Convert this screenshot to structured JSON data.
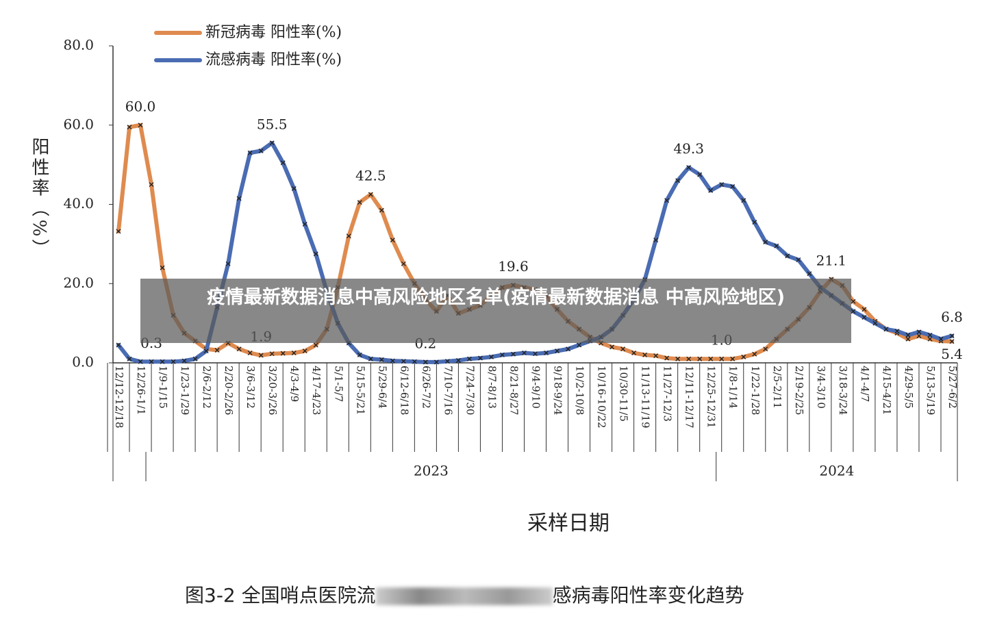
{
  "chart_data": {
    "type": "line",
    "ylabel": "阳性率（%）",
    "xlabel": "采样日期",
    "caption_left": "图3-2 全国哨点医院流",
    "caption_right": "感病毒阳性率变化趋势",
    "overlay": "疫情最新数据消息中高风险地区名单(疫情最新数据消息 中高风险地区)",
    "ylim": [
      0,
      80
    ],
    "yticks": [
      {
        "value": 0,
        "label": "0.0"
      },
      {
        "value": 20,
        "label": "20.0"
      },
      {
        "value": 40,
        "label": "40.0"
      },
      {
        "value": 60,
        "label": "60.0"
      },
      {
        "value": 80,
        "label": "80.0"
      }
    ],
    "categories": [
      "12/12-12/18",
      null,
      "12/26-1/1",
      null,
      "1/9-1/15",
      null,
      "1/23-1/29",
      null,
      "2/6-2/12",
      null,
      "2/20-2/26",
      null,
      "3/6-3/12",
      null,
      "3/20-3/26",
      null,
      "4/3-4/9",
      null,
      "4/17-4/23",
      null,
      "5/1-5/7",
      null,
      "5/15-5/21",
      null,
      "5/29-6/4",
      null,
      "6/12-6/18",
      null,
      "6/26-7/2",
      null,
      "7/10-7/16",
      null,
      "7/24-7/30",
      null,
      "8/7-8/13",
      null,
      "8/21-8/27",
      null,
      "9/4-9/10",
      null,
      "9/18-9/24",
      null,
      "10/2-10/8",
      null,
      "10/16-10/22",
      null,
      "10/30-11/5",
      null,
      "11/13-11/19",
      null,
      "11/27-12/3",
      null,
      "12/11-12/17",
      null,
      "12/25-12/31",
      null,
      "1/8-1/14",
      null,
      "1/22-1/28",
      null,
      "2/5-2/11",
      null,
      "2/19-2/25",
      null,
      "3/4-3/10",
      null,
      "3/18-3/24",
      null,
      "4/1-4/7",
      null,
      "4/15-4/21",
      null,
      "4/29-5/5",
      null,
      "5/13-5/19",
      null,
      "5/27-6/2"
    ],
    "year_groups": [
      {
        "label": "2023",
        "from": 3,
        "to": 54
      },
      {
        "label": "2024",
        "from": 55,
        "to": 76
      }
    ],
    "series": [
      {
        "name": "新冠病毒 阳性率(%)",
        "color": "#df8b4f",
        "values": [
          33.2,
          59.5,
          60.0,
          45,
          24,
          12,
          7.5,
          5.5,
          3.5,
          3.2,
          5,
          3.5,
          2.5,
          1.9,
          2.3,
          2.4,
          2.5,
          3,
          4.5,
          8.5,
          19,
          32,
          40.5,
          42.5,
          38.5,
          31,
          25,
          20,
          16,
          13,
          17,
          12.5,
          13.5,
          14.5,
          17,
          19,
          19.6,
          19,
          18.5,
          17,
          13.5,
          10.5,
          8.5,
          6.5,
          5,
          4,
          3.5,
          2.5,
          2,
          1.8,
          1.2,
          1.0,
          1.0,
          1.0,
          1.0,
          1.0,
          1.0,
          1.5,
          2.2,
          3.5,
          6,
          8.5,
          11,
          14,
          18,
          21.1,
          19.5,
          15.5,
          13.5,
          10.5,
          8.5,
          7.5,
          6,
          6.8,
          6,
          5.5,
          5.4
        ],
        "value_labels": [
          null,
          null,
          "60.0",
          null,
          null,
          null,
          null,
          null,
          null,
          null,
          null,
          null,
          null,
          "1.9",
          null,
          null,
          null,
          null,
          null,
          null,
          null,
          null,
          null,
          "42.5",
          null,
          null,
          null,
          null,
          null,
          null,
          null,
          null,
          null,
          null,
          null,
          null,
          "19.6",
          null,
          null,
          null,
          null,
          null,
          null,
          null,
          null,
          null,
          null,
          null,
          null,
          null,
          null,
          null,
          null,
          null,
          null,
          "1.0",
          null,
          null,
          null,
          null,
          null,
          null,
          null,
          null,
          null,
          "21.1",
          null,
          null,
          null,
          null,
          null,
          null,
          null,
          null,
          null,
          null,
          "5.4"
        ]
      },
      {
        "name": "流感病毒 阳性率(%)",
        "color": "#4a6cb3",
        "values": [
          4.5,
          1.0,
          0.3,
          0.3,
          0.3,
          0.3,
          0.5,
          1,
          3,
          14,
          25,
          41.5,
          53,
          53.5,
          55.5,
          50.5,
          44,
          35,
          27.5,
          18,
          10,
          5,
          2,
          1,
          0.8,
          0.5,
          0.4,
          0.3,
          0.2,
          0.2,
          0.4,
          0.6,
          1,
          1.2,
          1.5,
          2,
          2.2,
          2.5,
          2.3,
          2.5,
          3,
          3.5,
          4.5,
          5.5,
          6.5,
          8.5,
          12,
          16,
          21,
          31,
          41,
          46,
          49.3,
          47.5,
          43.5,
          45,
          44.5,
          41,
          35.5,
          30.5,
          29.5,
          27,
          26,
          22.5,
          19,
          17,
          15,
          13,
          11.5,
          10,
          8.5,
          8,
          7,
          7.8,
          7,
          6,
          6.8
        ],
        "value_labels": [
          null,
          null,
          null,
          "0.3",
          null,
          null,
          null,
          null,
          null,
          null,
          null,
          null,
          null,
          null,
          "55.5",
          null,
          null,
          null,
          null,
          null,
          null,
          null,
          null,
          null,
          null,
          null,
          null,
          null,
          "0.2",
          null,
          null,
          null,
          null,
          null,
          null,
          null,
          null,
          null,
          null,
          null,
          null,
          null,
          null,
          null,
          null,
          null,
          null,
          null,
          null,
          null,
          null,
          null,
          "49.3",
          null,
          null,
          null,
          null,
          null,
          null,
          null,
          null,
          null,
          null,
          null,
          null,
          null,
          null,
          null,
          null,
          null,
          null,
          null,
          null,
          null,
          null,
          null,
          "6.8"
        ]
      }
    ]
  }
}
